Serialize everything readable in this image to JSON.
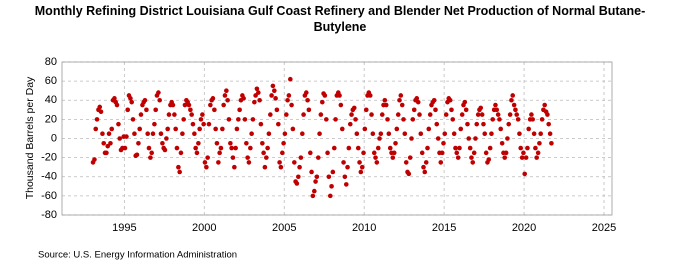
{
  "chart_data": {
    "type": "scatter",
    "title": "Monthly Refining District Louisiana Gulf Coast Refinery and Blender Net Production of Normal Butane-Butylene",
    "y_label": "Thousand Barrels per Day",
    "source": "Source: U.S. Energy Information Administration",
    "xlim": [
      1991.1,
      2025.5
    ],
    "xticks": [
      1995,
      2000,
      2005,
      2010,
      2015,
      2020,
      2025
    ],
    "ylim": [
      -80,
      80
    ],
    "yticks": [
      -80,
      -60,
      -40,
      -20,
      0,
      20,
      40,
      60,
      80
    ],
    "grid": true,
    "color": "#c00000",
    "x": [
      1993.04,
      1993.13,
      1993.21,
      1993.29,
      1993.38,
      1993.46,
      1993.54,
      1993.63,
      1993.71,
      1993.79,
      1993.88,
      1993.96,
      1994.04,
      1994.13,
      1994.21,
      1994.29,
      1994.38,
      1994.46,
      1994.54,
      1994.63,
      1994.71,
      1994.79,
      1994.88,
      1994.96,
      1995.04,
      1995.13,
      1995.21,
      1995.29,
      1995.38,
      1995.46,
      1995.54,
      1995.63,
      1995.71,
      1995.79,
      1995.88,
      1995.96,
      1996.04,
      1996.13,
      1996.21,
      1996.29,
      1996.38,
      1996.46,
      1996.54,
      1996.63,
      1996.71,
      1996.79,
      1996.88,
      1996.96,
      1997.04,
      1997.13,
      1997.21,
      1997.29,
      1997.38,
      1997.46,
      1997.54,
      1997.63,
      1997.71,
      1997.79,
      1997.88,
      1997.96,
      1998.04,
      1998.13,
      1998.21,
      1998.29,
      1998.38,
      1998.46,
      1998.54,
      1998.63,
      1998.71,
      1998.79,
      1998.88,
      1998.96,
      1999.04,
      1999.13,
      1999.21,
      1999.29,
      1999.38,
      1999.46,
      1999.54,
      1999.63,
      1999.71,
      1999.79,
      1999.88,
      1999.96,
      2000.04,
      2000.13,
      2000.21,
      2000.29,
      2000.38,
      2000.46,
      2000.54,
      2000.63,
      2000.71,
      2000.79,
      2000.88,
      2000.96,
      2001.04,
      2001.13,
      2001.21,
      2001.29,
      2001.38,
      2001.46,
      2001.54,
      2001.63,
      2001.71,
      2001.79,
      2001.88,
      2001.96,
      2002.04,
      2002.13,
      2002.21,
      2002.29,
      2002.38,
      2002.46,
      2002.54,
      2002.63,
      2002.71,
      2002.79,
      2002.88,
      2002.96,
      2003.04,
      2003.13,
      2003.21,
      2003.29,
      2003.38,
      2003.46,
      2003.54,
      2003.63,
      2003.71,
      2003.79,
      2003.88,
      2003.96,
      2004.04,
      2004.13,
      2004.21,
      2004.29,
      2004.38,
      2004.46,
      2004.54,
      2004.63,
      2004.71,
      2004.79,
      2004.88,
      2004.96,
      2005.04,
      2005.13,
      2005.21,
      2005.29,
      2005.38,
      2005.46,
      2005.54,
      2005.63,
      2005.71,
      2005.79,
      2005.88,
      2005.96,
      2006.04,
      2006.13,
      2006.21,
      2006.29,
      2006.38,
      2006.46,
      2006.54,
      2006.63,
      2006.71,
      2006.79,
      2006.88,
      2006.96,
      2007.04,
      2007.13,
      2007.21,
      2007.29,
      2007.38,
      2007.46,
      2007.54,
      2007.63,
      2007.71,
      2007.79,
      2007.88,
      2007.96,
      2008.04,
      2008.13,
      2008.21,
      2008.29,
      2008.38,
      2008.46,
      2008.54,
      2008.63,
      2008.71,
      2008.79,
      2008.88,
      2008.96,
      2009.04,
      2009.13,
      2009.21,
      2009.29,
      2009.38,
      2009.46,
      2009.54,
      2009.63,
      2009.71,
      2009.79,
      2009.88,
      2009.96,
      2010.04,
      2010.13,
      2010.21,
      2010.29,
      2010.38,
      2010.46,
      2010.54,
      2010.63,
      2010.71,
      2010.79,
      2010.88,
      2010.96,
      2011.04,
      2011.13,
      2011.21,
      2011.29,
      2011.38,
      2011.46,
      2011.54,
      2011.63,
      2011.71,
      2011.79,
      2011.88,
      2011.96,
      2012.04,
      2012.13,
      2012.21,
      2012.29,
      2012.38,
      2012.46,
      2012.54,
      2012.63,
      2012.71,
      2012.79,
      2012.88,
      2012.96,
      2013.04,
      2013.13,
      2013.21,
      2013.29,
      2013.38,
      2013.46,
      2013.54,
      2013.63,
      2013.71,
      2013.79,
      2013.88,
      2013.96,
      2014.04,
      2014.13,
      2014.21,
      2014.29,
      2014.38,
      2014.46,
      2014.54,
      2014.63,
      2014.71,
      2014.79,
      2014.88,
      2014.96,
      2015.04,
      2015.13,
      2015.21,
      2015.29,
      2015.38,
      2015.46,
      2015.54,
      2015.63,
      2015.71,
      2015.79,
      2015.88,
      2015.96,
      2016.04,
      2016.13,
      2016.21,
      2016.29,
      2016.38,
      2016.46,
      2016.54,
      2016.63,
      2016.71,
      2016.79,
      2016.88,
      2016.96,
      2017.04,
      2017.13,
      2017.21,
      2017.29,
      2017.38,
      2017.46,
      2017.54,
      2017.63,
      2017.71,
      2017.79,
      2017.88,
      2017.96,
      2018.04,
      2018.13,
      2018.21,
      2018.29,
      2018.38,
      2018.46,
      2018.54,
      2018.63,
      2018.71,
      2018.79,
      2018.88,
      2018.96,
      2019.04,
      2019.13,
      2019.21,
      2019.29,
      2019.38,
      2019.46,
      2019.54,
      2019.63,
      2019.71,
      2019.79,
      2019.88,
      2019.96,
      2020.04,
      2020.13,
      2020.21,
      2020.29,
      2020.38,
      2020.46,
      2020.54,
      2020.63,
      2020.71,
      2020.79,
      2020.88,
      2020.96,
      2021.04,
      2021.13,
      2021.21,
      2021.29,
      2021.38,
      2021.46,
      2021.54,
      2021.63,
      2021.71
    ],
    "values": [
      -25,
      -22,
      10,
      20,
      30,
      33,
      28,
      5,
      -5,
      -15,
      -15,
      -8,
      5,
      -5,
      10,
      40,
      42,
      38,
      35,
      15,
      0,
      -12,
      -10,
      2,
      -10,
      2,
      30,
      45,
      42,
      38,
      20,
      5,
      -18,
      -17,
      -5,
      10,
      25,
      35,
      38,
      40,
      30,
      5,
      -10,
      -20,
      -15,
      5,
      15,
      30,
      45,
      48,
      40,
      5,
      -5,
      -10,
      -12,
      0,
      10,
      25,
      35,
      38,
      35,
      25,
      10,
      -10,
      -30,
      -35,
      -15,
      5,
      20,
      35,
      40,
      38,
      35,
      30,
      25,
      15,
      5,
      -10,
      -15,
      -5,
      10,
      20,
      25,
      15,
      -25,
      -30,
      -20,
      15,
      35,
      40,
      42,
      30,
      10,
      -5,
      -25,
      -15,
      -10,
      10,
      35,
      45,
      50,
      40,
      20,
      -5,
      -10,
      -20,
      -30,
      -10,
      10,
      20,
      30,
      40,
      45,
      42,
      20,
      -5,
      -20,
      -25,
      -10,
      5,
      20,
      38,
      45,
      52,
      48,
      40,
      15,
      -5,
      -15,
      -30,
      -20,
      -10,
      5,
      25,
      45,
      55,
      50,
      42,
      30,
      15,
      -25,
      -30,
      -15,
      -5,
      5,
      25,
      40,
      45,
      62,
      35,
      10,
      -25,
      -45,
      -47,
      -40,
      -30,
      -20,
      5,
      25,
      45,
      48,
      40,
      30,
      -15,
      -35,
      -60,
      -55,
      -45,
      -40,
      -20,
      5,
      25,
      38,
      47,
      45,
      20,
      -15,
      -40,
      -60,
      -50,
      -35,
      -10,
      20,
      45,
      48,
      45,
      35,
      10,
      -25,
      -40,
      -48,
      -30,
      -10,
      15,
      25,
      30,
      32,
      20,
      5,
      -10,
      -25,
      -35,
      -30,
      -15,
      10,
      30,
      45,
      48,
      45,
      25,
      5,
      -15,
      -20,
      -25,
      -10,
      0,
      5,
      25,
      35,
      40,
      35,
      20,
      5,
      -10,
      -15,
      -20,
      -15,
      -5,
      10,
      25,
      40,
      45,
      35,
      20,
      5,
      -25,
      -35,
      -37,
      -20,
      0,
      20,
      30,
      40,
      42,
      38,
      25,
      5,
      -15,
      -30,
      -35,
      -25,
      -10,
      10,
      25,
      35,
      38,
      40,
      30,
      15,
      0,
      -15,
      -25,
      -15,
      -5,
      5,
      25,
      38,
      42,
      40,
      30,
      20,
      5,
      -10,
      -15,
      -20,
      -10,
      10,
      25,
      35,
      38,
      30,
      15,
      0,
      -10,
      -20,
      -25,
      -15,
      0,
      15,
      25,
      30,
      32,
      25,
      15,
      5,
      -15,
      -25,
      -22,
      -10,
      5,
      20,
      30,
      35,
      30,
      25,
      20,
      10,
      -5,
      -15,
      -20,
      -15,
      0,
      15,
      25,
      40,
      45,
      35,
      30,
      25,
      20,
      5,
      -10,
      -20,
      -15,
      -37,
      -20,
      -10,
      10,
      20,
      25,
      20,
      5,
      -10,
      -20,
      -15,
      -5,
      5,
      20,
      30,
      35,
      28,
      25,
      15,
      5,
      -5
    ]
  }
}
